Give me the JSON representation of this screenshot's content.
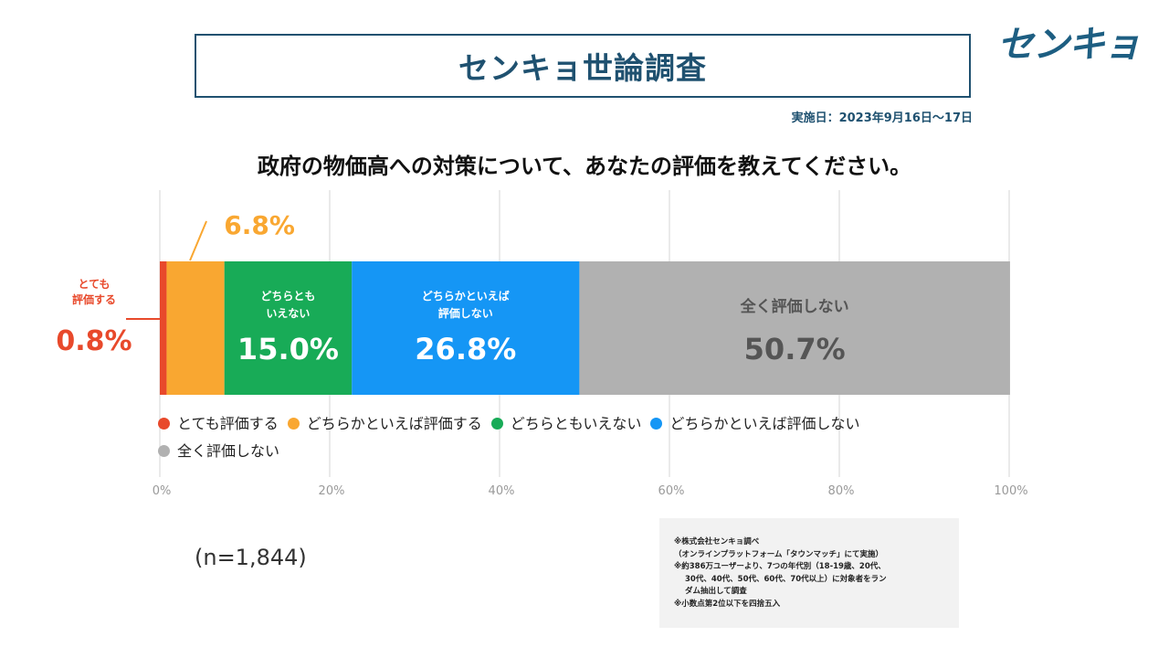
{
  "header": {
    "title": "センキョ世論調査",
    "logo": "センキョ",
    "date": "実施日：2023年9月16日～17日"
  },
  "question": "政府の物価高への対策について、あなたの評価を教えてください。",
  "sample_size": "(n=1,844)",
  "notes": [
    "※株式会社センキョ調べ",
    "（オンラインプラットフォーム「タウンマッチ」にて実施）",
    "※約386万ユーザーより、7つの年代別（18-19歳、20代、",
    "30代、40代、50代、60代、70代以上）に対象者をラン",
    "ダム抽出して調査",
    "※小数点第2位以下を四捨五入"
  ],
  "chart_data": {
    "type": "bar",
    "stacked": true,
    "orientation": "horizontal",
    "categories": [
      "政府の物価高への対策"
    ],
    "series": [
      {
        "name": "とても評価する",
        "values": [
          0.8
        ],
        "label": "0.8%",
        "color": "#e8492b",
        "inner_label_lines": [
          "とても",
          "評価する"
        ]
      },
      {
        "name": "どちらかといえば評価する",
        "values": [
          6.8
        ],
        "label": "6.8%",
        "color": "#f9a731",
        "inner_label_lines": []
      },
      {
        "name": "どちらともいえない",
        "values": [
          15.0
        ],
        "label": "15.0%",
        "color": "#18ab57",
        "inner_label_lines": [
          "どちらとも",
          "いえない"
        ]
      },
      {
        "name": "どちらかといえば評価しない",
        "values": [
          26.8
        ],
        "label": "26.8%",
        "color": "#1596f5",
        "inner_label_lines": [
          "どちらかといえば",
          "評価しない"
        ]
      },
      {
        "name": "全く評価しない",
        "values": [
          50.7
        ],
        "label": "50.7%",
        "color": "#b1b1b1",
        "inner_label_lines": [
          "全く評価しない"
        ]
      }
    ],
    "xlim": [
      0,
      100
    ],
    "x_ticks": [
      "0%",
      "20%",
      "40%",
      "60%",
      "80%",
      "100%"
    ],
    "grid": true,
    "legend": "bottom"
  }
}
